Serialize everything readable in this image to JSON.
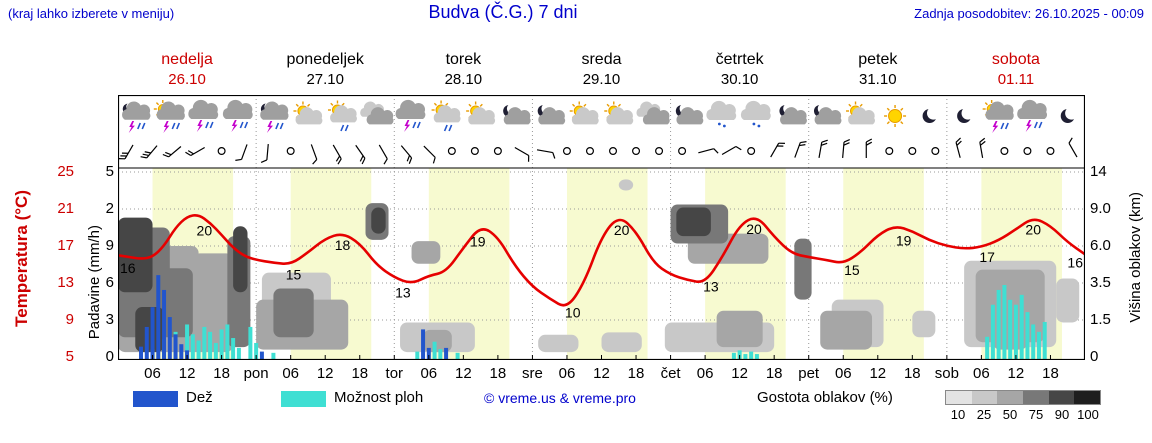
{
  "header": {
    "hint": "(kraj lahko izberete v meniju)",
    "title": "Budva (Č.G.) 7 dni",
    "updated": "Zadnja posodobitev: 26.10.2025 - 00:09"
  },
  "days": [
    {
      "name": "nedelja",
      "date": "26.10",
      "red": true
    },
    {
      "name": "ponedeljek",
      "date": "27.10",
      "red": false
    },
    {
      "name": "torek",
      "date": "28.10",
      "red": false
    },
    {
      "name": "sreda",
      "date": "29.10",
      "red": false
    },
    {
      "name": "četrtek",
      "date": "30.10",
      "red": false
    },
    {
      "name": "petek",
      "date": "31.10",
      "red": false
    },
    {
      "name": "sobota",
      "date": "01.11",
      "red": true
    }
  ],
  "axes": {
    "temp": {
      "label": "Temperatura (°C)",
      "ticks": [
        "25",
        "21",
        "17",
        "13",
        "9",
        "5"
      ]
    },
    "precip": {
      "label": "Padavine (mm/h)",
      "ticks": [
        "5",
        "2",
        "9",
        "6",
        "3",
        "0"
      ]
    },
    "cloudheight": {
      "label": "Višina oblakov (km)",
      "ticks": [
        "14",
        "9.0",
        "6.0",
        "3.5",
        "1.5",
        "0"
      ]
    }
  },
  "xaxis": {
    "hour_marks": [
      "06",
      "12",
      "18"
    ],
    "day_marks": [
      "pon",
      "tor",
      "sre",
      "čet",
      "pet",
      "sob"
    ]
  },
  "legend": {
    "rain": "Dež",
    "showers": "Možnost ploh",
    "credit": "© vreme.us & vreme.pro",
    "cloud_density": "Gostota oblakov (%)",
    "density_ticks": [
      "10",
      "25",
      "50",
      "75",
      "90",
      "100"
    ]
  },
  "colors": {
    "rain": "#2255cc",
    "showers": "#3fdfd3",
    "temp": "#e60000",
    "dayband": "#f7fad0",
    "blue_text": "#0000cc",
    "red_text": "#cc0000",
    "grid": "#999999",
    "cloud_shades": {
      "10": "#e3e3e3",
      "25": "#c8c8c8",
      "50": "#a6a6a6",
      "75": "#787878",
      "90": "#464646",
      "100": "#1e1e1e"
    }
  },
  "chart_data": {
    "type": "line",
    "title": "Budva (Č.G.) 7 dni",
    "hours_total": 168,
    "daylight_hours": [
      6,
      20
    ],
    "ylim_temp": [
      5,
      25
    ],
    "cloud_height_ticks_km": [
      0,
      1.5,
      3.5,
      6,
      9,
      14
    ],
    "temperature_series": {
      "name": "Temperatura",
      "unit": "°C",
      "x": [
        0,
        2,
        4,
        6,
        8,
        10,
        12,
        14,
        16,
        18,
        20,
        22,
        24,
        27,
        30,
        33,
        36,
        39,
        42,
        45,
        48,
        51,
        54,
        57,
        60,
        63,
        66,
        69,
        72,
        75,
        78,
        81,
        84,
        87,
        90,
        93,
        96,
        99,
        102,
        105,
        108,
        111,
        114,
        117,
        120,
        123,
        126,
        129,
        132,
        135,
        138,
        141,
        144,
        147,
        150,
        153,
        156,
        159,
        162,
        165,
        168
      ],
      "y": [
        16.0,
        15.8,
        15.6,
        15.8,
        17.0,
        19.0,
        20.2,
        20.4,
        19.5,
        18.2,
        16.8,
        15.9,
        15.5,
        15.2,
        15.0,
        16.3,
        17.8,
        18.4,
        17.3,
        14.9,
        13.6,
        12.9,
        13.8,
        14.2,
        16.8,
        19.2,
        18.0,
        14.8,
        12.6,
        11.3,
        10.2,
        13.0,
        18.0,
        20.3,
        18.6,
        15.2,
        13.9,
        13.3,
        13.0,
        15.8,
        19.3,
        20.3,
        18.0,
        16.2,
        15.8,
        15.5,
        15.1,
        16.3,
        18.2,
        19.2,
        18.6,
        17.6,
        17.0,
        16.7,
        16.9,
        17.6,
        18.8,
        20.1,
        19.2,
        17.4,
        16.1
      ]
    },
    "temperature_labels": [
      {
        "h": 1,
        "label": "16"
      },
      {
        "h": 15,
        "label": "20"
      },
      {
        "h": 30.5,
        "label": "15"
      },
      {
        "h": 39,
        "label": "18"
      },
      {
        "h": 49.5,
        "label": "13"
      },
      {
        "h": 62.5,
        "label": "19"
      },
      {
        "h": 79,
        "label": "10"
      },
      {
        "h": 87.5,
        "label": "20"
      },
      {
        "h": 103,
        "label": "13"
      },
      {
        "h": 110.5,
        "label": "20"
      },
      {
        "h": 127.5,
        "label": "15"
      },
      {
        "h": 136.5,
        "label": "19"
      },
      {
        "h": 151,
        "label": "17"
      },
      {
        "h": 159,
        "label": "20"
      },
      {
        "h": 167,
        "label": "16"
      }
    ],
    "rain_bars": {
      "name": "Dež",
      "unit": "mm/h",
      "points": [
        [
          4,
          1.0
        ],
        [
          5,
          2.6
        ],
        [
          6,
          4.2
        ],
        [
          7,
          6.8
        ],
        [
          8,
          5.6
        ],
        [
          9,
          3.4
        ],
        [
          10,
          2.0
        ],
        [
          11,
          1.2
        ],
        [
          12,
          0.7
        ],
        [
          25,
          0.6
        ],
        [
          53,
          2.4
        ],
        [
          54,
          0.9
        ],
        [
          57,
          0.9
        ]
      ]
    },
    "shower_bars": {
      "name": "Možnost ploh",
      "unit": "mm/h",
      "points": [
        [
          6,
          0.8
        ],
        [
          8,
          1.6
        ],
        [
          10,
          2.2
        ],
        [
          12,
          2.8
        ],
        [
          13,
          2.0
        ],
        [
          14,
          1.5
        ],
        [
          15,
          2.6
        ],
        [
          16,
          2.2
        ],
        [
          17,
          1.3
        ],
        [
          18,
          2.4
        ],
        [
          19,
          2.8
        ],
        [
          20,
          1.7
        ],
        [
          21,
          0.9
        ],
        [
          23,
          2.6
        ],
        [
          24,
          1.3
        ],
        [
          27,
          0.5
        ],
        [
          52,
          0.6
        ],
        [
          55,
          1.4
        ],
        [
          56,
          0.8
        ],
        [
          59,
          0.5
        ],
        [
          107,
          0.5
        ],
        [
          108,
          0.7
        ],
        [
          109,
          0.4
        ],
        [
          110,
          0.6
        ],
        [
          111,
          0.4
        ],
        [
          151,
          1.8
        ],
        [
          152,
          4.4
        ],
        [
          153,
          5.6
        ],
        [
          154,
          6.0
        ],
        [
          155,
          4.8
        ],
        [
          156,
          4.4
        ],
        [
          157,
          5.2
        ],
        [
          158,
          3.8
        ],
        [
          159,
          2.8
        ],
        [
          160,
          2.2
        ],
        [
          161,
          3.0
        ]
      ]
    },
    "clouds": [
      [
        0,
        9,
        2.0,
        7.5,
        75
      ],
      [
        0,
        6,
        3.0,
        8.3,
        90
      ],
      [
        0,
        13,
        0.8,
        4.5,
        75
      ],
      [
        0,
        20,
        0.2,
        3.0,
        50
      ],
      [
        3,
        8,
        0.2,
        2.2,
        90
      ],
      [
        8,
        14,
        2.5,
        6.0,
        50
      ],
      [
        11,
        21,
        0.4,
        4.2,
        25
      ],
      [
        13,
        20,
        0.8,
        5.5,
        50
      ],
      [
        19,
        23,
        0.4,
        6.8,
        75
      ],
      [
        20,
        22.5,
        3.0,
        7.6,
        90
      ],
      [
        24,
        40,
        0.3,
        2.6,
        50
      ],
      [
        25,
        37,
        0.4,
        4.2,
        25
      ],
      [
        27,
        34,
        0.8,
        3.2,
        75
      ],
      [
        43,
        47,
        6.5,
        9.8,
        75
      ],
      [
        44,
        46.5,
        7.0,
        9.2,
        90
      ],
      [
        51,
        56,
        4.8,
        6.4,
        50
      ],
      [
        49,
        62,
        0.2,
        1.4,
        25
      ],
      [
        53,
        58,
        0.2,
        1.1,
        50
      ],
      [
        73,
        80,
        0.2,
        0.9,
        25
      ],
      [
        84,
        91,
        0.2,
        1.0,
        25
      ],
      [
        87,
        89.5,
        11.5,
        13.0,
        25
      ],
      [
        96,
        106,
        6.2,
        9.6,
        75
      ],
      [
        97,
        103,
        6.8,
        9.2,
        90
      ],
      [
        99,
        113,
        4.8,
        7.0,
        50
      ],
      [
        95,
        114,
        0.2,
        1.4,
        25
      ],
      [
        104,
        112,
        0.4,
        2.0,
        50
      ],
      [
        117.5,
        120.5,
        2.6,
        6.6,
        75
      ],
      [
        122,
        131,
        0.3,
        2.0,
        50
      ],
      [
        124,
        133,
        0.4,
        2.6,
        25
      ],
      [
        138,
        142,
        0.8,
        2.0,
        25
      ],
      [
        147,
        163,
        0.4,
        5.0,
        25
      ],
      [
        149,
        161,
        0.6,
        4.4,
        50
      ],
      [
        152,
        158,
        0.3,
        2.6,
        50
      ],
      [
        163,
        167,
        1.4,
        3.8,
        25
      ]
    ],
    "weather_icons": [
      "moon-storm",
      "sun-storm",
      "storm",
      "storm",
      "moon-storm",
      "partly",
      "partly-rain",
      "cloudy",
      "storm",
      "partly-rain",
      "partly",
      "cloud-moon",
      "cloud-moon",
      "partly",
      "partly",
      "cloudy",
      "cloud-moon",
      "drizzle",
      "drizzle",
      "cloud-moon",
      "cloud-moon",
      "partly",
      "sun",
      "moon",
      "moon",
      "sun-storm",
      "storm",
      "moon"
    ],
    "wind_barbs": [
      {
        "a": 210,
        "s": 3
      },
      {
        "a": 220,
        "s": 3
      },
      {
        "a": 230,
        "s": 2
      },
      {
        "a": 240,
        "s": 2
      },
      "c",
      {
        "a": 200,
        "s": 1
      },
      {
        "a": 185,
        "s": 1
      },
      "c",
      {
        "a": 160,
        "s": 1
      },
      {
        "a": 150,
        "s": 2
      },
      {
        "a": 145,
        "s": 2
      },
      {
        "a": 150,
        "s": 1
      },
      {
        "a": 140,
        "s": 2
      },
      {
        "a": 135,
        "s": 1
      },
      "c",
      "c",
      "c",
      {
        "a": 120,
        "s": 1
      },
      {
        "a": 100,
        "s": 1
      },
      "c",
      "c",
      "c",
      "c",
      "c",
      "c",
      {
        "a": 75,
        "s": 1
      },
      {
        "a": 60,
        "s": 1
      },
      "c",
      {
        "a": 30,
        "s": 2
      },
      {
        "a": 20,
        "s": 2
      },
      {
        "a": 10,
        "s": 2
      },
      {
        "a": 5,
        "s": 2
      },
      {
        "a": 0,
        "s": 2
      },
      "c",
      "c",
      "c",
      {
        "a": 345,
        "s": 2
      },
      {
        "a": 350,
        "s": 2
      },
      "c",
      "c",
      "c",
      {
        "a": 330,
        "s": 1
      }
    ]
  }
}
